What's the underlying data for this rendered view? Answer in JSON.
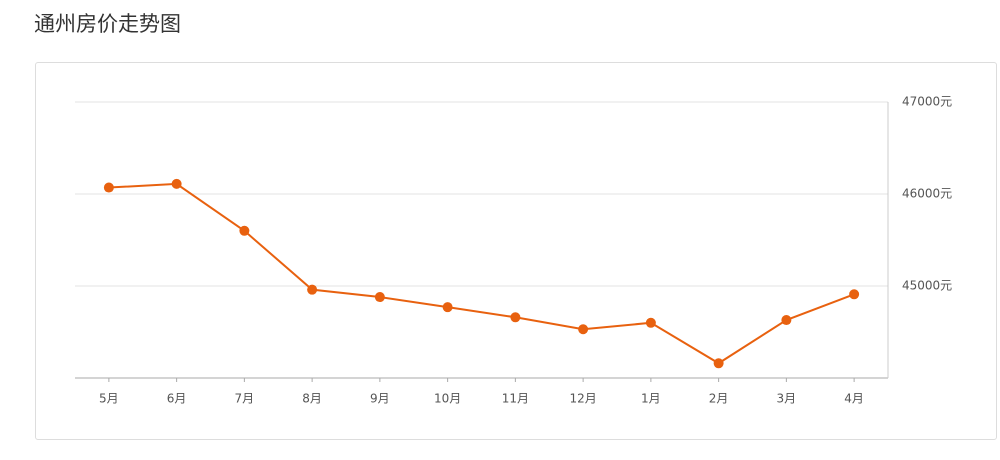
{
  "title": "通州房价走势图",
  "chart_data": {
    "type": "line",
    "categories": [
      "5月",
      "6月",
      "7月",
      "8月",
      "9月",
      "10月",
      "11月",
      "12月",
      "1月",
      "2月",
      "3月",
      "4月"
    ],
    "values": [
      46070,
      46110,
      45600,
      44960,
      44880,
      44770,
      44660,
      44530,
      44600,
      44160,
      44630,
      44910
    ],
    "color": "#e8610f",
    "ylim": [
      44000,
      47000
    ],
    "yticks": [
      {
        "value": 45000,
        "label": "45000元"
      },
      {
        "value": 46000,
        "label": "46000元"
      },
      {
        "value": 47000,
        "label": "47000元"
      }
    ],
    "grid": true
  }
}
